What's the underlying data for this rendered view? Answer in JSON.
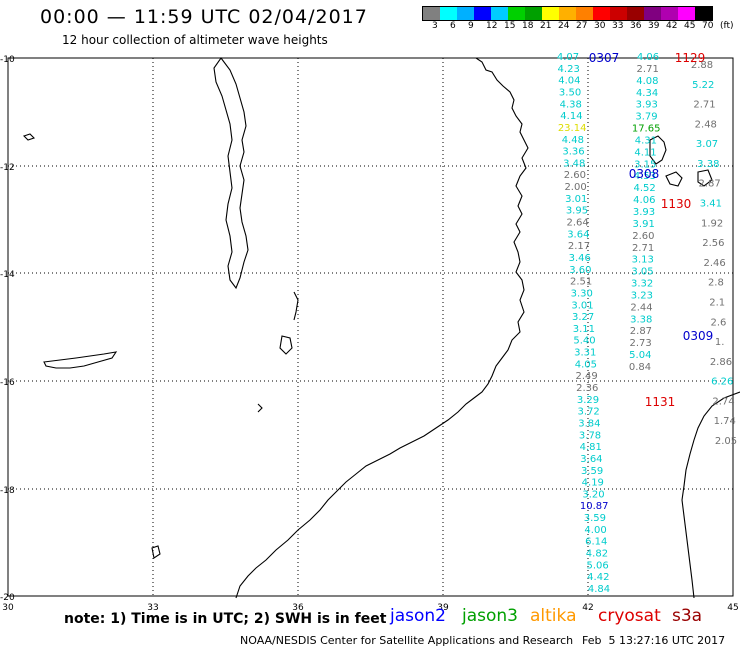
{
  "header": {
    "title": "00:00 — 11:59 UTC 02/04/2017",
    "subtitle": "12 hour collection of altimeter wave heights"
  },
  "scale": {
    "colors": [
      "#808080",
      "#00ffff",
      "#00b0ff",
      "#0000ff",
      "#00ccff",
      "#00d000",
      "#00a000",
      "#ffff00",
      "#ffb000",
      "#ff8000",
      "#ff0000",
      "#cc0000",
      "#990000",
      "#800080",
      "#b000b0",
      "#ff00ff",
      "#000000"
    ],
    "labels": [
      "3",
      "6",
      "9",
      "12",
      "15",
      "18",
      "21",
      "24",
      "27",
      "30",
      "33",
      "36",
      "39",
      "42",
      "45",
      "70",
      "(ft)"
    ]
  },
  "axes": {
    "lat_labels": [
      "-10",
      "-12",
      "-14",
      "-16",
      "-18",
      "-20"
    ],
    "lon_labels": [
      "30",
      "33",
      "36",
      "39",
      "42",
      "45"
    ]
  },
  "tracks": {
    "c1": [
      "4.07",
      "4.23",
      "4.04",
      "3.50",
      "4.38",
      "4.14",
      "23.14",
      "4.48",
      "3.36",
      "3.48",
      "2.60",
      "2.00",
      "3.01",
      "3.95",
      "2.64",
      "3.64",
      "2.17",
      "3.46",
      "3.60",
      "2.51",
      "3.30",
      "3.01",
      "3.27",
      "3.11",
      "5.40",
      "3.31",
      "4.05",
      "2.49",
      "2.36",
      "3.29",
      "3.72",
      "3.84",
      "3.78",
      "4.81",
      "3.64",
      "3.59",
      "4.19",
      "3.20",
      "10.87",
      "3.59",
      "4.00",
      "6.14",
      "4.82",
      "5.06",
      "4.42",
      "4.84"
    ],
    "c2": [
      "4.06",
      "2.71",
      "4.08",
      "4.34",
      "3.93",
      "3.79",
      "17.65",
      "4.31",
      "4.11",
      "3.15",
      "4.53",
      "4.52",
      "4.06",
      "3.93",
      "3.91",
      "2.60",
      "2.71",
      "3.13",
      "3.05",
      "3.32",
      "3.23",
      "2.44",
      "3.38",
      "2.87",
      "2.73",
      "5.04",
      "0.84"
    ],
    "c3": [
      "2.88",
      "5.22",
      "2.71",
      "2.48",
      "3.07",
      "3.38",
      "2.87",
      "3.41",
      "1.92",
      "2.56",
      "2.46",
      "2.8",
      "2.1",
      "2.6",
      "1.",
      "2.86",
      "6.26",
      "2.74",
      "1.74",
      "2.05"
    ]
  },
  "pass_labels": [
    {
      "text": "0307",
      "color": "#0000cc"
    },
    {
      "text": "1129",
      "color": "#dd0000"
    },
    {
      "text": "0308",
      "color": "#0000cc"
    },
    {
      "text": "1130",
      "color": "#dd0000"
    },
    {
      "text": "0309",
      "color": "#0000cc"
    },
    {
      "text": "1131",
      "color": "#dd0000"
    }
  ],
  "footer": {
    "note": "note: 1) Time is in UTC; 2) SWH is in feet",
    "satellites": [
      {
        "name": "jason2",
        "color": "#0000ff"
      },
      {
        "name": "jason3",
        "color": "#00a000"
      },
      {
        "name": "altika",
        "color": "#ff9900"
      },
      {
        "name": "cryosat",
        "color": "#dd0000"
      },
      {
        "name": "s3a",
        "color": "#990000"
      }
    ],
    "credit": "NOAA/NESDIS Center for Satellite Applications and Research",
    "timestamp": "Feb  5 13:27:16 UTC 2017"
  }
}
